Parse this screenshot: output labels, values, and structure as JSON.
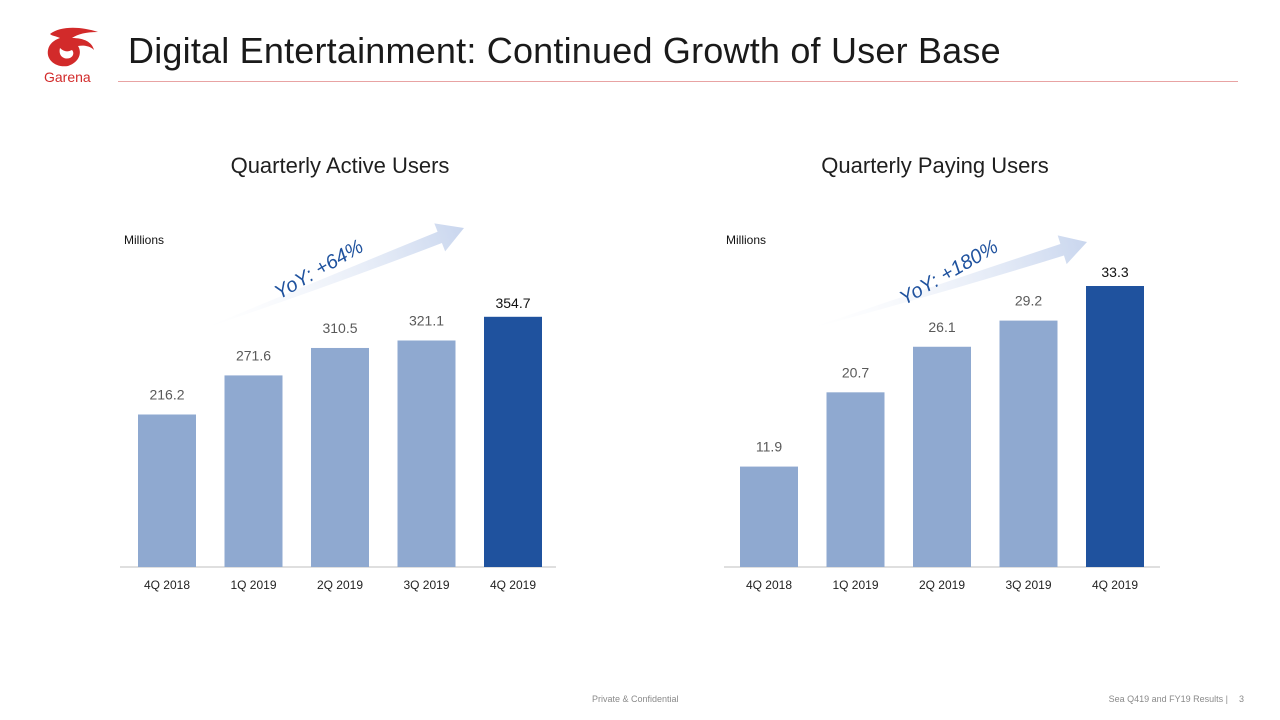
{
  "slide": {
    "title": "Digital Entertainment: Continued Growth of User Base",
    "logo_text": "Garena",
    "footer_center": "Private & Confidential",
    "footer_right": "Sea Q419 and FY19 Results |",
    "page_number": "3"
  },
  "colors": {
    "bar_light": "#8fa9d0",
    "bar_dark": "#1f529e",
    "axis": "#bfbfbf",
    "arrow": "#c9d6ee",
    "label_light": "#595959",
    "title_rule": "#e8a3a3",
    "logo": "#d22a2a"
  },
  "chart_data": [
    {
      "type": "bar",
      "title": "Quarterly Active Users",
      "ylabel": "Millions",
      "categories": [
        "4Q 2018",
        "1Q 2019",
        "2Q 2019",
        "3Q 2019",
        "4Q 2019"
      ],
      "values": [
        216.2,
        271.6,
        310.5,
        321.1,
        354.7
      ],
      "value_labels": [
        "216.2",
        "271.6",
        "310.5",
        "321.1",
        "354.7"
      ],
      "highlight_index": 4,
      "annotation": "YoY: +64%",
      "grid": false,
      "ylim": [
        0,
        370
      ]
    },
    {
      "type": "bar",
      "title": "Quarterly Paying Users",
      "ylabel": "Millions",
      "categories": [
        "4Q 2018",
        "1Q 2019",
        "2Q 2019",
        "3Q 2019",
        "4Q 2019"
      ],
      "values": [
        11.9,
        20.7,
        26.1,
        29.2,
        33.3
      ],
      "value_labels": [
        "11.9",
        "20.7",
        "26.1",
        "29.2",
        "33.3"
      ],
      "highlight_index": 4,
      "annotation": "YoY: +180%",
      "grid": false,
      "ylim": [
        0,
        33.3
      ]
    }
  ]
}
